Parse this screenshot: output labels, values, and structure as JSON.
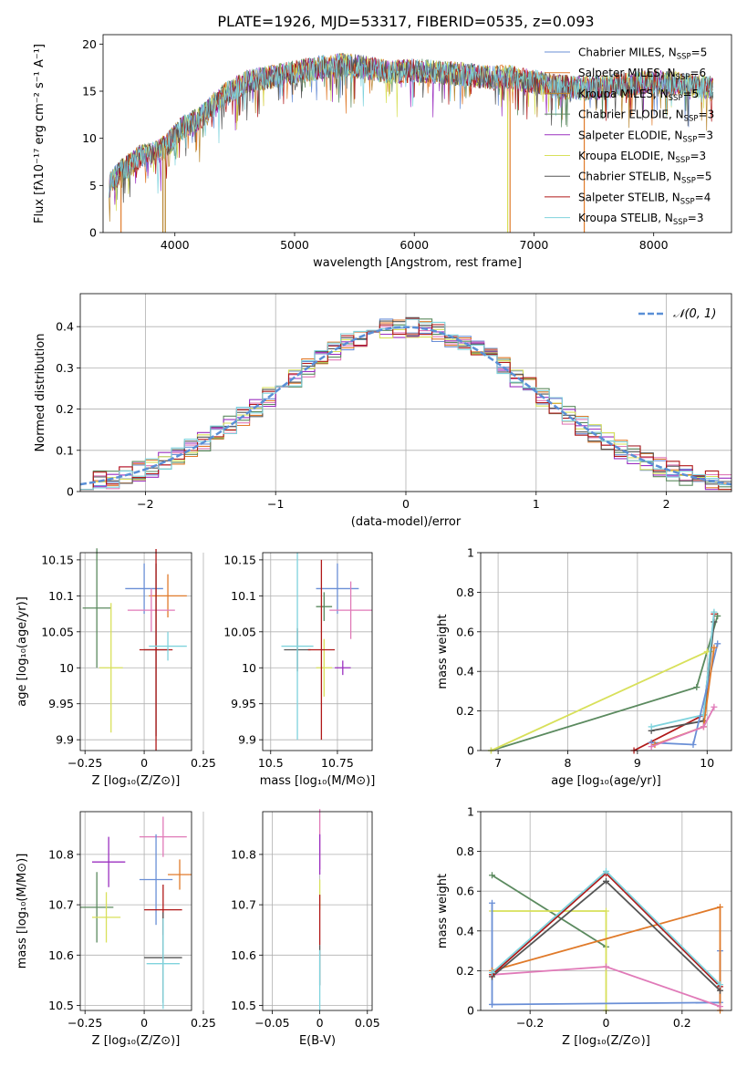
{
  "colors": {
    "Chabrier MILES": "#6a8fd6",
    "Salpeter MILES": "#e07a2a",
    "Kroupa MILES": "#b8862f",
    "Chabrier ELODIE": "#5b8a5f",
    "Salpeter ELODIE": "#9b30c0",
    "Kroupa ELODIE": "#d8e05a",
    "Chabrier STELIB": "#555555",
    "Salpeter STELIB": "#b01818",
    "Kroupa STELIB": "#7fd3dd",
    "Pink": "#e07ab8",
    "Gauss": "#5a8fd6"
  },
  "chart_data": [
    {
      "type": "line",
      "title": "PLATE=1926, MJD=53317, FIBERID=0535, z=0.093",
      "xlabel": "wavelength [Angstrom, rest frame]",
      "ylabel": "Flux [fλ10⁻¹⁷ erg cm⁻² s⁻¹ A⁻¹]",
      "xlim": [
        3400,
        8650
      ],
      "ylim": [
        0,
        21
      ],
      "xticks": [
        4000,
        5000,
        6000,
        7000,
        8000
      ],
      "yticks": [
        0,
        5,
        10,
        15,
        20
      ],
      "grid": false,
      "legend_position": "top-right",
      "legend": [
        {
          "name": "Chabrier MILES",
          "main": "Chabrier MILES, N",
          "sub": "SSP",
          "tail": "=5"
        },
        {
          "name": "Salpeter MILES",
          "main": "Salpeter MILES, N",
          "sub": "SSP",
          "tail": "=6"
        },
        {
          "name": "Kroupa MILES",
          "main": "Kroupa MILES, N",
          "sub": "SSP",
          "tail": "=5"
        },
        {
          "name": "Chabrier ELODIE",
          "main": "Chabrier ELODIE, N",
          "sub": "SSP",
          "tail": "=3"
        },
        {
          "name": "Salpeter ELODIE",
          "main": "Salpeter ELODIE, N",
          "sub": "SSP",
          "tail": "=3"
        },
        {
          "name": "Kroupa ELODIE",
          "main": "Kroupa ELODIE, N",
          "sub": "SSP",
          "tail": "=3"
        },
        {
          "name": "Chabrier STELIB",
          "main": "Chabrier STELIB, N",
          "sub": "SSP",
          "tail": "=5"
        },
        {
          "name": "Salpeter STELIB",
          "main": "Salpeter STELIB, N",
          "sub": "SSP",
          "tail": "=4"
        },
        {
          "name": "Kroupa STELIB",
          "main": "Kroupa STELIB, N",
          "sub": "SSP",
          "tail": "=3"
        }
      ],
      "spectrum_envelope": [
        [
          3450,
          5.0
        ],
        [
          3550,
          6.5
        ],
        [
          3700,
          8.0
        ],
        [
          3850,
          8.5
        ],
        [
          3950,
          9.5
        ],
        [
          4050,
          11.0
        ],
        [
          4200,
          12.0
        ],
        [
          4400,
          14.5
        ],
        [
          4600,
          16.0
        ],
        [
          4800,
          16.5
        ],
        [
          5000,
          17.0
        ],
        [
          5200,
          17.5
        ],
        [
          5400,
          17.8
        ],
        [
          5600,
          17.5
        ],
        [
          5800,
          17.0
        ],
        [
          6000,
          17.2
        ],
        [
          6200,
          17.0
        ],
        [
          6400,
          16.8
        ],
        [
          6600,
          16.5
        ],
        [
          6800,
          16.5
        ],
        [
          7000,
          16.0
        ],
        [
          7200,
          15.5
        ],
        [
          7400,
          15.3
        ],
        [
          7600,
          15.5
        ],
        [
          7800,
          15.8
        ],
        [
          8000,
          16.0
        ],
        [
          8200,
          15.8
        ],
        [
          8400,
          15.5
        ],
        [
          8500,
          15.3
        ]
      ]
    },
    {
      "type": "line",
      "xlabel": "(data-model)/error",
      "ylabel": "Normed distribution",
      "xlim": [
        -2.5,
        2.5
      ],
      "ylim": [
        0,
        0.48
      ],
      "xticks": [
        -2,
        -1,
        0,
        1,
        2
      ],
      "yticks": [
        0.0,
        0.1,
        0.2,
        0.3,
        0.4
      ],
      "grid": true,
      "legend_position": "top-right",
      "legend_label": "𝒩(0, 1)",
      "bin_width": 0.1
    },
    {
      "type": "scatter",
      "xlabel": "Z [log₁₀(Z/Z⊙)]",
      "ylabel": "age  [log₁₀(age/yr)]",
      "xlim": [
        -0.27,
        0.2
      ],
      "ylim": [
        9.885,
        10.16
      ],
      "xticks": [
        -0.25,
        0.0,
        0.25
      ],
      "yticks": [
        9.9,
        9.95,
        10.0,
        10.05,
        10.1,
        10.15
      ],
      "grid": true,
      "points": [
        {
          "series": "Chabrier MILES",
          "x": 0.0,
          "y": 10.11,
          "xerr": 0.08,
          "yerr": 0.035
        },
        {
          "series": "Salpeter MILES",
          "x": 0.1,
          "y": 10.1,
          "xerr": 0.08,
          "yerr": 0.03
        },
        {
          "series": "Pink",
          "x": 0.03,
          "y": 10.08,
          "xerr": 0.1,
          "yerr": 0.03
        },
        {
          "series": "Chabrier ELODIE",
          "x": -0.2,
          "y": 10.083,
          "xerr": 0.06,
          "yerr": 0.083
        },
        {
          "series": "Kroupa ELODIE",
          "x": -0.14,
          "y": 10.0,
          "xerr": 0.05,
          "yerr": 0.09
        },
        {
          "series": "Chabrier STELIB",
          "x": 0.05,
          "y": 10.025,
          "xerr": 0.05,
          "yerr": 0.12
        },
        {
          "series": "Salpeter STELIB",
          "x": 0.05,
          "y": 10.025,
          "xerr": 0.07,
          "yerr": 0.14
        },
        {
          "series": "Kroupa STELIB",
          "x": 0.1,
          "y": 10.03,
          "xerr": 0.08,
          "yerr": 0.02
        }
      ]
    },
    {
      "type": "scatter",
      "xlabel": "mass [log₁₀(M/M⊙)]",
      "xlim": [
        10.47,
        10.88
      ],
      "ylim": [
        9.885,
        10.16
      ],
      "xticks": [
        10.5,
        10.75
      ],
      "yticks": [
        9.9,
        9.95,
        10.0,
        10.05,
        10.1,
        10.15
      ],
      "grid": true,
      "points": [
        {
          "series": "Chabrier MILES",
          "x": 10.75,
          "y": 10.11,
          "xerr": 0.08,
          "yerr": 0.035
        },
        {
          "series": "Pink",
          "x": 10.8,
          "y": 10.08,
          "xerr": 0.08,
          "yerr": 0.04
        },
        {
          "series": "Chabrier ELODIE",
          "x": 10.7,
          "y": 10.085,
          "xerr": 0.03,
          "yerr": 0.02
        },
        {
          "series": "Kroupa ELODIE",
          "x": 10.7,
          "y": 10.0,
          "xerr": 0.03,
          "yerr": 0.04
        },
        {
          "series": "Salpeter ELODIE",
          "x": 10.77,
          "y": 10.0,
          "xerr": 0.03,
          "yerr": 0.01
        },
        {
          "series": "Chabrier STELIB",
          "x": 10.6,
          "y": 10.025,
          "xerr": 0.05,
          "yerr": 0.03
        },
        {
          "series": "Salpeter STELIB",
          "x": 10.69,
          "y": 10.025,
          "xerr": 0.05,
          "yerr": 0.125
        },
        {
          "series": "Kroupa STELIB",
          "x": 10.6,
          "y": 10.03,
          "xerr": 0.06,
          "yerr": 0.13
        }
      ]
    },
    {
      "type": "line",
      "xlabel": "age  [log₁₀(age/yr)]",
      "ylabel": "mass weight",
      "xlim": [
        6.75,
        10.35
      ],
      "ylim": [
        0,
        1
      ],
      "xticks": [
        7,
        8,
        9,
        10
      ],
      "yticks": [
        0.0,
        0.2,
        0.4,
        0.6,
        0.8,
        1.0
      ],
      "grid": true,
      "series": [
        {
          "name": "Chabrier ELODIE",
          "x": [
            6.9,
            9.85,
            10.15
          ],
          "y": [
            0.0,
            0.32,
            0.68
          ]
        },
        {
          "name": "Kroupa ELODIE",
          "x": [
            6.9,
            10.0,
            10.05
          ],
          "y": [
            0.0,
            0.5,
            0.5
          ]
        },
        {
          "name": "Salpeter STELIB",
          "x": [
            8.95,
            9.95,
            10.1
          ],
          "y": [
            0.0,
            0.18,
            0.69
          ]
        },
        {
          "name": "Chabrier STELIB",
          "x": [
            9.2,
            9.95,
            10.1
          ],
          "y": [
            0.1,
            0.15,
            0.65
          ]
        },
        {
          "name": "Kroupa STELIB",
          "x": [
            9.2,
            9.95,
            10.1
          ],
          "y": [
            0.12,
            0.18,
            0.7
          ]
        },
        {
          "name": "Chabrier MILES",
          "x": [
            9.2,
            9.8,
            10.15
          ],
          "y": [
            0.04,
            0.03,
            0.54
          ]
        },
        {
          "name": "Salpeter MILES",
          "x": [
            9.25,
            9.95,
            10.1
          ],
          "y": [
            0.03,
            0.12,
            0.52
          ]
        },
        {
          "name": "Pink",
          "x": [
            9.2,
            9.95,
            10.1
          ],
          "y": [
            0.02,
            0.12,
            0.22
          ]
        }
      ]
    },
    {
      "type": "scatter",
      "xlabel": "Z [log₁₀(Z/Z⊙)]",
      "ylabel": "mass [log₁₀(M/M⊙)]",
      "xlim": [
        -0.27,
        0.2
      ],
      "ylim": [
        10.49,
        10.885
      ],
      "xticks": [
        -0.25,
        0.0,
        0.25
      ],
      "yticks": [
        10.5,
        10.6,
        10.7,
        10.8
      ],
      "grid": true,
      "points": [
        {
          "series": "Salpeter ELODIE",
          "x": -0.15,
          "y": 10.785,
          "xerr": 0.07,
          "yerr": 0.05
        },
        {
          "series": "Pink",
          "x": 0.08,
          "y": 10.835,
          "xerr": 0.1,
          "yerr": 0.04
        },
        {
          "series": "Chabrier MILES",
          "x": 0.05,
          "y": 10.75,
          "xerr": 0.07,
          "yerr": 0.09
        },
        {
          "series": "Salpeter MILES",
          "x": 0.15,
          "y": 10.76,
          "xerr": 0.05,
          "yerr": 0.03
        },
        {
          "series": "Chabrier ELODIE",
          "x": -0.2,
          "y": 10.695,
          "xerr": 0.07,
          "yerr": 0.07
        },
        {
          "series": "Kroupa ELODIE",
          "x": -0.16,
          "y": 10.675,
          "xerr": 0.06,
          "yerr": 0.05
        },
        {
          "series": "Salpeter STELIB",
          "x": 0.08,
          "y": 10.69,
          "xerr": 0.08,
          "yerr": 0.05
        },
        {
          "series": "Chabrier STELIB",
          "x": 0.08,
          "y": 10.595,
          "xerr": 0.08,
          "yerr": 0.09
        },
        {
          "series": "Kroupa STELIB",
          "x": 0.08,
          "y": 10.583,
          "xerr": 0.07,
          "yerr": 0.09
        }
      ]
    },
    {
      "type": "scatter",
      "xlabel": "E(B-V)",
      "xlim": [
        -0.06,
        0.055
      ],
      "ylim": [
        10.49,
        10.885
      ],
      "xticks": [
        -0.05,
        0.0,
        0.05
      ],
      "yticks": [
        10.5,
        10.6,
        10.7,
        10.8
      ],
      "grid": true,
      "points": [
        {
          "series": "Pink",
          "x": 0.0,
          "y": 10.83,
          "xerr": 0.0,
          "yerr": 0.06
        },
        {
          "series": "Salpeter ELODIE",
          "x": 0.0,
          "y": 10.8,
          "xerr": 0.0,
          "yerr": 0.04
        },
        {
          "series": "Kroupa ELODIE",
          "x": 0.0,
          "y": 10.72,
          "xerr": 0.0,
          "yerr": 0.03
        },
        {
          "series": "Salpeter STELIB",
          "x": 0.0,
          "y": 10.67,
          "xerr": 0.0,
          "yerr": 0.05
        },
        {
          "series": "Chabrier STELIB",
          "x": 0.0,
          "y": 10.58,
          "xerr": 0.0,
          "yerr": 0.04
        },
        {
          "series": "Kroupa STELIB",
          "x": 0.0,
          "y": 10.55,
          "xerr": 0.0,
          "yerr": 0.06
        }
      ]
    },
    {
      "type": "line",
      "xlabel": "Z [log₁₀(Z/Z⊙)]",
      "ylabel": "mass weight",
      "xlim": [
        -0.33,
        0.33
      ],
      "ylim": [
        0,
        1
      ],
      "xticks": [
        -0.2,
        0.0,
        0.2
      ],
      "yticks": [
        0.0,
        0.2,
        0.4,
        0.6,
        0.8,
        1.0
      ],
      "grid": true,
      "series": [
        {
          "name": "Chabrier ELODIE",
          "x": [
            -0.3,
            0.0
          ],
          "y": [
            0.68,
            0.32
          ]
        },
        {
          "name": "Kroupa ELODIE",
          "x": [
            -0.3,
            0.0,
            0.0
          ],
          "y": [
            0.5,
            0.5,
            0.0
          ]
        },
        {
          "name": "Chabrier MILES",
          "x": [
            -0.3,
            -0.3,
            0.3,
            0.3
          ],
          "y": [
            0.54,
            0.03,
            0.04,
            0.3
          ]
        },
        {
          "name": "Salpeter MILES",
          "x": [
            -0.3,
            0.3,
            0.3
          ],
          "y": [
            0.2,
            0.52,
            0.0
          ]
        },
        {
          "name": "Pink",
          "x": [
            -0.3,
            0.0,
            0.3
          ],
          "y": [
            0.18,
            0.22,
            0.02
          ]
        },
        {
          "name": "Chabrier STELIB",
          "x": [
            -0.3,
            0.0,
            0.3
          ],
          "y": [
            0.17,
            0.65,
            0.1
          ]
        },
        {
          "name": "Salpeter STELIB",
          "x": [
            -0.3,
            0.0,
            0.3
          ],
          "y": [
            0.18,
            0.69,
            0.12
          ]
        },
        {
          "name": "Kroupa STELIB",
          "x": [
            -0.3,
            0.0,
            0.3
          ],
          "y": [
            0.19,
            0.7,
            0.13
          ]
        }
      ]
    }
  ]
}
